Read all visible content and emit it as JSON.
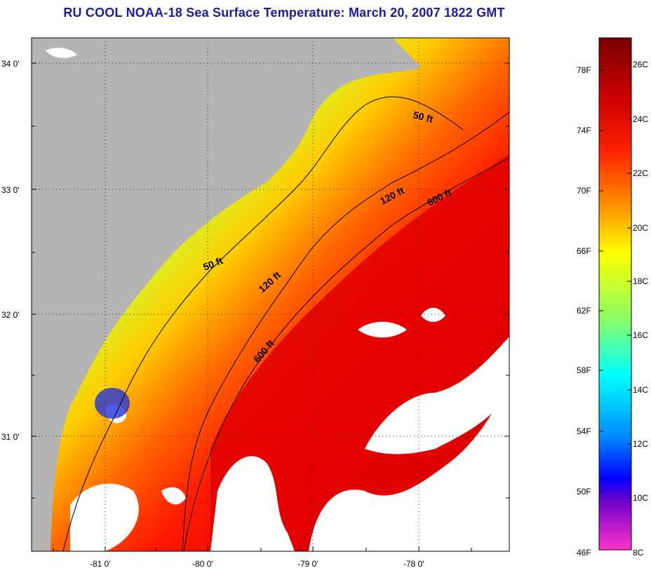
{
  "title": "RU COOL  NOAA-18  Sea Surface Temperature:  March 20, 2007 1822 GMT",
  "map": {
    "lat_labels": [
      "34 0'",
      "33 0'",
      "32 0'",
      "31 0'"
    ],
    "lon_labels": [
      "-81 0'",
      "-80 0'",
      "-79 0'",
      "-78 0'"
    ],
    "land_color": "#b4b4b4",
    "cloud_color": "#ffffff"
  },
  "contours": [
    {
      "label": "50 ft"
    },
    {
      "label": "50 ft"
    },
    {
      "label": "120 ft"
    },
    {
      "label": "120 ft"
    },
    {
      "label": "600 ft"
    },
    {
      "label": "600 ft"
    }
  ],
  "colorbar": {
    "fahrenheit_labels": [
      "78F",
      "74F",
      "70F",
      "66F",
      "62F",
      "58F",
      "54F",
      "50F",
      "46F"
    ],
    "celsius_labels": [
      "26C",
      "24C",
      "22C",
      "20C",
      "18C",
      "16C",
      "14C",
      "12C",
      "10C",
      "8C"
    ],
    "colors_top_to_bottom": [
      "#7a0000",
      "#cc0000",
      "#ff2200",
      "#ff8800",
      "#ffff00",
      "#88ff66",
      "#00ffff",
      "#0088ff",
      "#0000ff",
      "#6600cc",
      "#ff33cc"
    ]
  }
}
